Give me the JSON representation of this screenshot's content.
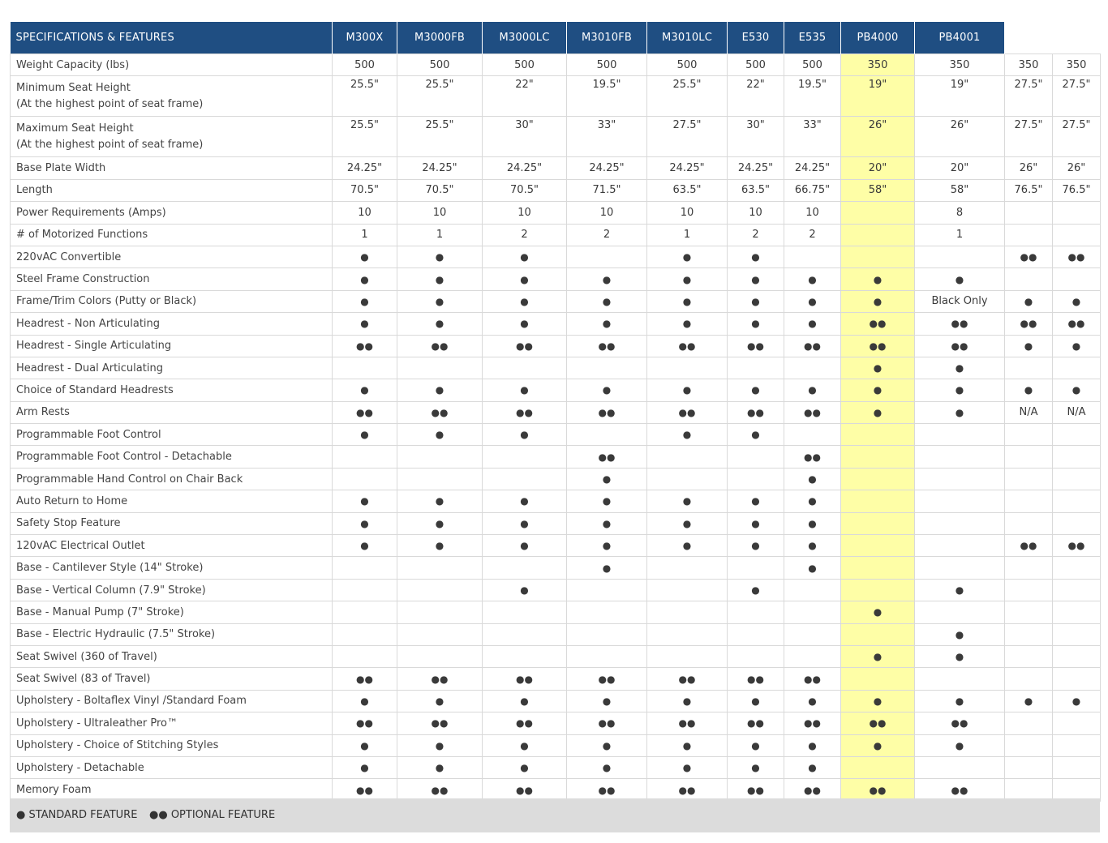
{
  "table": {
    "header_label": "SPECIFICATIONS & FEATURES",
    "columns": [
      "M300X",
      "M3000FB",
      "M3000LC",
      "M3010FB",
      "M3010LC",
      "E530",
      "E535",
      "PB4000",
      "PB4001",
      "",
      ""
    ],
    "highlight_column_index": 7,
    "rows": [
      {
        "label": "Weight Capacity (lbs)",
        "values": [
          "500",
          "500",
          "500",
          "500",
          "500",
          "500",
          "500",
          "350",
          "350",
          "350",
          "350"
        ]
      },
      {
        "label": "Minimum Seat Height",
        "sublabel": "(At the highest point of seat frame)",
        "values": [
          "25.5\"",
          "25.5\"",
          "22\"",
          "19.5\"",
          "25.5\"",
          "22\"",
          "19.5\"",
          "19\"",
          "19\"",
          "27.5\"",
          "27.5\""
        ]
      },
      {
        "label": "Maximum Seat Height",
        "sublabel": "(At the highest point of seat frame)",
        "values": [
          "25.5\"",
          "25.5\"",
          "30\"",
          "33\"",
          "27.5\"",
          "30\"",
          "33\"",
          "26\"",
          "26\"",
          "27.5\"",
          "27.5\""
        ]
      },
      {
        "label": "Base Plate Width",
        "values": [
          "24.25\"",
          "24.25\"",
          "24.25\"",
          "24.25\"",
          "24.25\"",
          "24.25\"",
          "24.25\"",
          "20\"",
          "20\"",
          "26\"",
          "26\""
        ]
      },
      {
        "label": "Length",
        "values": [
          "70.5\"",
          "70.5\"",
          "70.5\"",
          "71.5\"",
          "63.5\"",
          "63.5\"",
          "66.75\"",
          "58\"",
          "58\"",
          "76.5\"",
          "76.5\""
        ]
      },
      {
        "label": "Power Requirements (Amps)",
        "values": [
          "10",
          "10",
          "10",
          "10",
          "10",
          "10",
          "10",
          "",
          "8",
          "",
          ""
        ]
      },
      {
        "label": "# of Motorized Functions",
        "values": [
          "1",
          "1",
          "2",
          "2",
          "1",
          "2",
          "2",
          "",
          "1",
          "",
          ""
        ]
      },
      {
        "label": "220vAC Convertible",
        "values": [
          "●",
          "●",
          "●",
          "",
          "●",
          "●",
          "",
          "",
          "",
          "●●",
          "●●"
        ]
      },
      {
        "label": "Steel Frame Construction",
        "values": [
          "●",
          "●",
          "●",
          "●",
          "●",
          "●",
          "●",
          "●",
          "●",
          "",
          ""
        ]
      },
      {
        "label": "Frame/Trim Colors (Putty or Black)",
        "values": [
          "●",
          "●",
          "●",
          "●",
          "●",
          "●",
          "●",
          "●",
          "Black Only",
          "●",
          "●"
        ]
      },
      {
        "label": "Headrest - Non Articulating",
        "values": [
          "●",
          "●",
          "●",
          "●",
          "●",
          "●",
          "●",
          "●●",
          "●●",
          "●●",
          "●●"
        ]
      },
      {
        "label": "Headrest - Single Articulating",
        "values": [
          "●●",
          "●●",
          "●●",
          "●●",
          "●●",
          "●●",
          "●●",
          "●●",
          "●●",
          "●",
          "●"
        ]
      },
      {
        "label": "Headrest - Dual Articulating",
        "values": [
          "",
          "",
          "",
          "",
          "",
          "",
          "",
          "●",
          "●",
          "",
          ""
        ]
      },
      {
        "label": "Choice of Standard Headrests",
        "values": [
          "●",
          "●",
          "●",
          "●",
          "●",
          "●",
          "●",
          "●",
          "●",
          "●",
          "●"
        ]
      },
      {
        "label": "Arm Rests",
        "values": [
          "●●",
          "●●",
          "●●",
          "●●",
          "●●",
          "●●",
          "●●",
          "●",
          "●",
          "N/A",
          "N/A"
        ]
      },
      {
        "label": "Programmable Foot Control",
        "values": [
          "●",
          "●",
          "●",
          "",
          "●",
          "●",
          "",
          "",
          "",
          "",
          ""
        ]
      },
      {
        "label": "Programmable Foot Control - Detachable",
        "values": [
          "",
          "",
          "",
          "●●",
          "",
          "",
          "●●",
          "",
          "",
          "",
          ""
        ]
      },
      {
        "label": "Programmable Hand Control on Chair Back",
        "values": [
          "",
          "",
          "",
          "●",
          "",
          "",
          "●",
          "",
          "",
          "",
          ""
        ]
      },
      {
        "label": "Auto Return to Home",
        "values": [
          "●",
          "●",
          "●",
          "●",
          "●",
          "●",
          "●",
          "",
          "",
          "",
          ""
        ]
      },
      {
        "label": "Safety Stop Feature",
        "values": [
          "●",
          "●",
          "●",
          "●",
          "●",
          "●",
          "●",
          "",
          "",
          "",
          ""
        ]
      },
      {
        "label": "120vAC Electrical Outlet",
        "values": [
          "●",
          "●",
          "●",
          "●",
          "●",
          "●",
          "●",
          "",
          "",
          "●●",
          "●●"
        ]
      },
      {
        "label": "Base - Cantilever Style (14\" Stroke)",
        "values": [
          "",
          "",
          "",
          "●",
          "",
          "",
          "●",
          "",
          "",
          "",
          ""
        ]
      },
      {
        "label": "Base - Vertical Column (7.9\" Stroke)",
        "values": [
          "",
          "",
          "●",
          "",
          "",
          "●",
          "",
          "",
          "●",
          "",
          ""
        ]
      },
      {
        "label": "Base - Manual Pump (7\" Stroke)",
        "values": [
          "",
          "",
          "",
          "",
          "",
          "",
          "",
          "●",
          "",
          "",
          ""
        ]
      },
      {
        "label": "Base - Electric Hydraulic (7.5\" Stroke)",
        "values": [
          "",
          "",
          "",
          "",
          "",
          "",
          "",
          "",
          "●",
          "",
          ""
        ]
      },
      {
        "label": "Seat Swivel (360 of Travel)",
        "values": [
          "",
          "",
          "",
          "",
          "",
          "",
          "",
          "●",
          "●",
          "",
          ""
        ]
      },
      {
        "label": "Seat Swivel (83 of Travel)",
        "values": [
          "●●",
          "●●",
          "●●",
          "●●",
          "●●",
          "●●",
          "●●",
          "",
          "",
          "",
          ""
        ]
      },
      {
        "label": "Upholstery - Boltaflex Vinyl /Standard Foam",
        "values": [
          "●",
          "●",
          "●",
          "●",
          "●",
          "●",
          "●",
          "●",
          "●",
          "●",
          "●"
        ]
      },
      {
        "label": "Upholstery - Ultraleather Pro™",
        "values": [
          "●●",
          "●●",
          "●●",
          "●●",
          "●●",
          "●●",
          "●●",
          "●●",
          "●●",
          "",
          ""
        ]
      },
      {
        "label": "Upholstery - Choice of Stitching Styles",
        "values": [
          "●",
          "●",
          "●",
          "●",
          "●",
          "●",
          "●",
          "●",
          "●",
          "",
          ""
        ]
      },
      {
        "label": "Upholstery - Detachable",
        "values": [
          "●",
          "●",
          "●",
          "●",
          "●",
          "●",
          "●",
          "",
          "",
          "",
          ""
        ]
      },
      {
        "label": "Memory Foam",
        "values": [
          "●●",
          "●●",
          "●●",
          "●●",
          "●●",
          "●●",
          "●●",
          "●●",
          "●●",
          "",
          ""
        ]
      }
    ]
  },
  "legend": {
    "standard": "● STANDARD FEATURE",
    "optional": "●● OPTIONAL FEATURE"
  },
  "colors": {
    "header_bg": "#1f4e82",
    "highlight": "#fefea6",
    "legend_bg": "#dcdcdc"
  }
}
